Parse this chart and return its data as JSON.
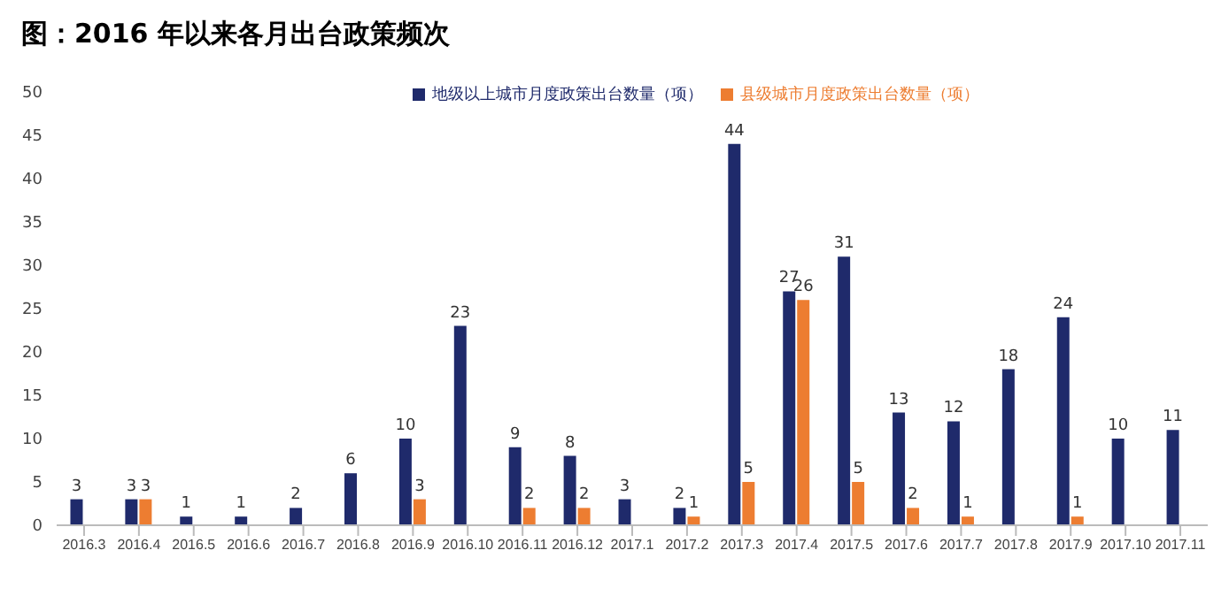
{
  "chart_data": {
    "type": "bar",
    "title": "图：2016 年以来各月出台政策频次",
    "categories": [
      "2016.3",
      "2016.4",
      "2016.5",
      "2016.6",
      "2016.7",
      "2016.8",
      "2016.9",
      "2016.10",
      "2016.11",
      "2016.12",
      "2017.1",
      "2017.2",
      "2017.3",
      "2017.4",
      "2017.5",
      "2017.6",
      "2017.7",
      "2017.8",
      "2017.9",
      "2017.10",
      "2017.11"
    ],
    "series": [
      {
        "name": "地级以上城市月度政策出台数量（项）",
        "color": "#1f2a6b",
        "values": [
          3,
          3,
          1,
          1,
          2,
          6,
          10,
          23,
          9,
          8,
          3,
          2,
          44,
          27,
          31,
          13,
          12,
          18,
          24,
          10,
          11
        ]
      },
      {
        "name": "县级城市月度政策出台数量（项）",
        "color": "#ed7d31",
        "values": [
          null,
          3,
          null,
          null,
          null,
          null,
          3,
          null,
          2,
          2,
          null,
          1,
          5,
          26,
          5,
          2,
          1,
          null,
          1,
          null,
          null
        ]
      }
    ],
    "ylim": [
      0,
      50
    ],
    "yticks": [
      0,
      5,
      10,
      15,
      20,
      25,
      30,
      35,
      40,
      45,
      50
    ],
    "grid": false,
    "legend": "top",
    "data_labels": true
  }
}
